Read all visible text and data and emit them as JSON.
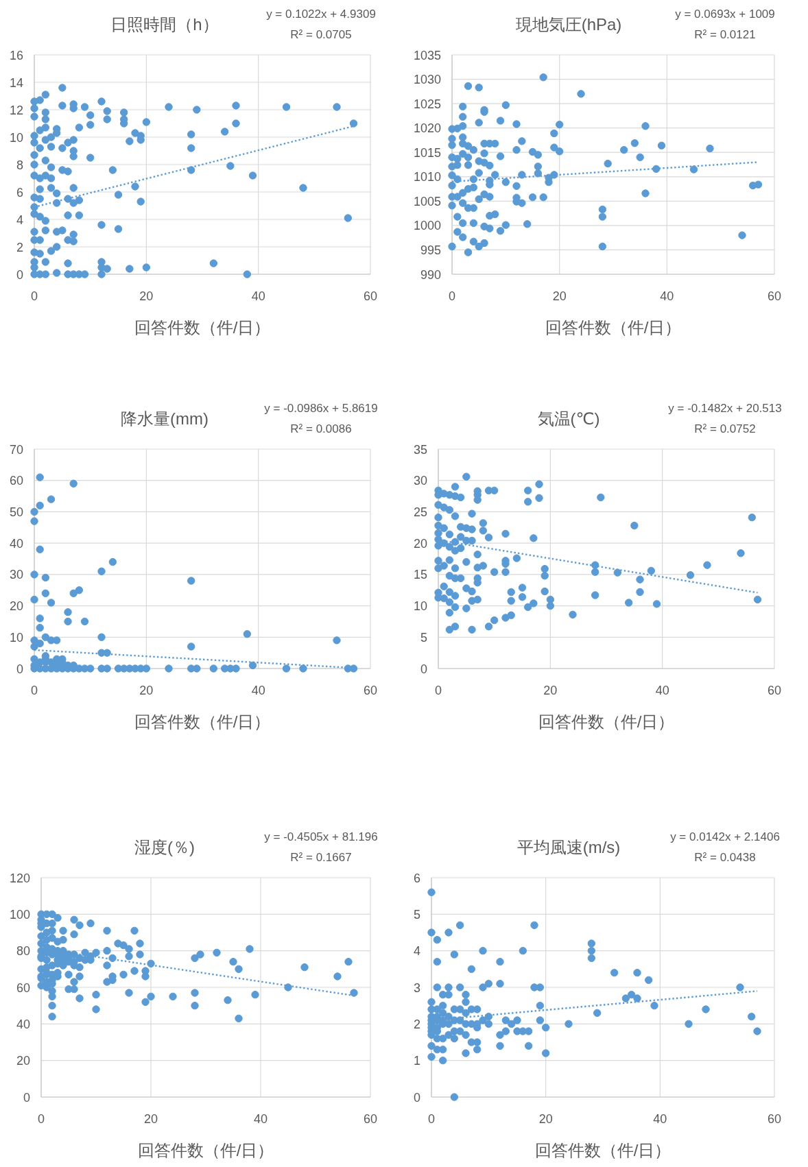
{
  "chart_data": [
    {
      "type": "scatter",
      "title": "日照時間（h）",
      "xlabel": "回答件数（件/日）",
      "annotations": [
        "y = 0.1022x + 4.9309",
        "R² = 0.0705"
      ],
      "xlim": [
        0,
        60
      ],
      "xticks": [
        0,
        20,
        40,
        60
      ],
      "ylim": [
        0,
        16
      ],
      "yticks": [
        0,
        2,
        4,
        6,
        8,
        10,
        12,
        14,
        16
      ],
      "grid": true,
      "series": [
        {
          "marker": "circle",
          "color": "#5b9bd5",
          "x": [
            5,
            2,
            0,
            1,
            0,
            0,
            2,
            2,
            2,
            5,
            7,
            7,
            9,
            10,
            10,
            12,
            13,
            13,
            16,
            16,
            16,
            20,
            24,
            29,
            36,
            36,
            45,
            54,
            57,
            34,
            28,
            28,
            18,
            19,
            19,
            17,
            8,
            4,
            4,
            0,
            0,
            1,
            1,
            2,
            3,
            3,
            5,
            6,
            7,
            7,
            7,
            10,
            0,
            0,
            2,
            3,
            0,
            1,
            2,
            3,
            5,
            6,
            14,
            28,
            35,
            39,
            18,
            7,
            48,
            1,
            3,
            4,
            0,
            1,
            4,
            6,
            8,
            7,
            15,
            19,
            0,
            0,
            1,
            6,
            8,
            56,
            2,
            12,
            15,
            0,
            2,
            4,
            5,
            7,
            0,
            1,
            6,
            7,
            0,
            1,
            3,
            4,
            2,
            0,
            6,
            12,
            32,
            12,
            13,
            17,
            20,
            0,
            1,
            2,
            4,
            6,
            7,
            8,
            9,
            12,
            38,
            0
          ],
          "values": [
            13.6,
            13.1,
            12.6,
            12.7,
            12.1,
            11.5,
            11.8,
            11.3,
            10.7,
            12.3,
            12.4,
            12.1,
            12.2,
            11.6,
            10.9,
            12.6,
            11.9,
            11.3,
            11.8,
            11.3,
            11.0,
            11.1,
            12.2,
            12.0,
            12.3,
            11.0,
            12.2,
            12.2,
            11.0,
            10.4,
            10.2,
            9.2,
            10.3,
            10.1,
            9.8,
            9.7,
            10.7,
            10.6,
            10.3,
            10.1,
            9.6,
            10.5,
            9.2,
            9.8,
            10.0,
            9.3,
            9.2,
            9.6,
            9.8,
            9.0,
            8.6,
            8.5,
            8.7,
            8.0,
            8.3,
            7.8,
            7.2,
            7.0,
            7.2,
            7.0,
            7.6,
            7.5,
            7.6,
            7.6,
            7.9,
            7.2,
            6.4,
            6.3,
            6.3,
            6.2,
            6.3,
            5.9,
            5.6,
            5.5,
            5.2,
            5.5,
            5.4,
            5.2,
            5.8,
            5.3,
            4.9,
            4.4,
            4.2,
            4.3,
            4.3,
            4.1,
            3.9,
            3.6,
            3.3,
            3.1,
            3.2,
            3.1,
            3.2,
            2.9,
            2.5,
            2.5,
            2.5,
            2.4,
            1.6,
            1.5,
            1.7,
            2.0,
            0.9,
            0.9,
            0.8,
            0.9,
            0.8,
            0.5,
            0.4,
            0.4,
            0.5,
            0,
            0,
            0,
            0.1,
            0,
            0,
            0,
            0,
            0,
            0,
            0.5
          ]
        },
        {
          "type": "line",
          "marker": "none",
          "color": "#5b9bd5",
          "line_style": "dotted",
          "x": [
            0,
            57
          ],
          "values": [
            4.9,
            10.8
          ]
        }
      ]
    },
    {
      "type": "scatter",
      "title": "現地気圧(hPa)",
      "xlabel": "回答件数（件/日）",
      "annotations": [
        "y = 0.0693x + 1009",
        "R² = 0.0121"
      ],
      "xlim": [
        0,
        60
      ],
      "xticks": [
        0,
        20,
        40,
        60
      ],
      "ylim": [
        990,
        1035
      ],
      "yticks": [
        990,
        995,
        1000,
        1005,
        1010,
        1015,
        1020,
        1025,
        1030,
        1035
      ],
      "grid": true,
      "series": [
        {
          "marker": "circle",
          "color": "#5b9bd5",
          "x": [
            17,
            3,
            5,
            24,
            2,
            10,
            6,
            6,
            2,
            9,
            5,
            12,
            20,
            36,
            0,
            1,
            2,
            19,
            0,
            0,
            2,
            2,
            13,
            6,
            7,
            8,
            3,
            4,
            34,
            39,
            48,
            32,
            12,
            19,
            20,
            15,
            16,
            6,
            9,
            35,
            0,
            1,
            3,
            2,
            5,
            6,
            7,
            3,
            29,
            16,
            0,
            16,
            38,
            45,
            13,
            8,
            5,
            19,
            18,
            18,
            0,
            1,
            4,
            7,
            10,
            7,
            12,
            0,
            3,
            4,
            56,
            57,
            36,
            0,
            1,
            6,
            7,
            15,
            17,
            5,
            12,
            12,
            13,
            0,
            2,
            3,
            4,
            28,
            28,
            8,
            7,
            1,
            2,
            4,
            14,
            10,
            6,
            7,
            9,
            1,
            2,
            54,
            4,
            6,
            0,
            5,
            28,
            3,
            1,
            2
          ],
          "values": [
            1030.4,
            1028.6,
            1028.3,
            1027.0,
            1024.4,
            1024.7,
            1023.7,
            1023.3,
            1022.3,
            1021.5,
            1021.1,
            1020.8,
            1020.7,
            1020.4,
            1019.8,
            1019.9,
            1020.4,
            1018.9,
            1017.8,
            1016.5,
            1018.1,
            1016.8,
            1017.3,
            1016.8,
            1016.8,
            1016.8,
            1016.3,
            1015.5,
            1016.9,
            1016.4,
            1015.8,
            1015.5,
            1015.5,
            1016.0,
            1015.2,
            1015.1,
            1014.5,
            1014.8,
            1014.2,
            1014.0,
            1014.0,
            1013.7,
            1014.0,
            1014.7,
            1013.2,
            1012.9,
            1012.3,
            1012.4,
            1012.7,
            1012.1,
            1012.1,
            1010.7,
            1011.6,
            1011.5,
            1010.4,
            1010.4,
            1010.8,
            1010.4,
            1009.8,
            1008.9,
            1010.3,
            1009.5,
            1009.5,
            1009.2,
            1008.9,
            1008.4,
            1008.1,
            1008.2,
            1007.5,
            1007.8,
            1008.2,
            1008.4,
            1006.6,
            1005.9,
            1005.9,
            1006.4,
            1005.9,
            1005.8,
            1005.8,
            1005.4,
            1005.7,
            1004.9,
            1004.6,
            1004.1,
            1004.6,
            1003.6,
            1003.6,
            1003.3,
            1001.8,
            1002.3,
            1002.0,
            1001.8,
            1000.5,
            1000.5,
            1000.3,
            1000.1,
            999.8,
            999.4,
            998.9,
            998.7,
            997.6,
            998.0,
            996.7,
            996.4,
            995.7,
            995.7,
            995.7,
            994.5,
            1012.4,
            1006.7
          ]
        },
        {
          "type": "line",
          "marker": "none",
          "color": "#5b9bd5",
          "line_style": "dotted",
          "x": [
            0,
            57
          ],
          "values": [
            1009.0,
            1013.0
          ]
        }
      ]
    },
    {
      "type": "scatter",
      "title": "降水量(mm)",
      "xlabel": "回答件数（件/日）",
      "annotations": [
        "y = -0.0986x + 5.8619",
        "R² = 0.0086"
      ],
      "xlim": [
        0,
        60
      ],
      "xticks": [
        0,
        20,
        40,
        60
      ],
      "ylim": [
        0,
        70
      ],
      "yticks": [
        0,
        10,
        20,
        30,
        40,
        50,
        60,
        70
      ],
      "grid": true,
      "series": [
        {
          "marker": "circle",
          "color": "#5b9bd5",
          "x": [
            1,
            7,
            3,
            1,
            0,
            0,
            1,
            14,
            12,
            0,
            2,
            28,
            8,
            7,
            2,
            0,
            3,
            6,
            6,
            9,
            1,
            1,
            38,
            12,
            2,
            3,
            4,
            54,
            0,
            0,
            1,
            28,
            12,
            13,
            2,
            0,
            5,
            4,
            2,
            39,
            5,
            1,
            0,
            3,
            4,
            6,
            7,
            2,
            0,
            1,
            2,
            3,
            4,
            5,
            6,
            7,
            8,
            9,
            10,
            12,
            13,
            15,
            16,
            17,
            18,
            19,
            20,
            24,
            28,
            29,
            32,
            34,
            35,
            36,
            45,
            48,
            56,
            57
          ],
          "values": [
            61,
            59,
            54,
            52,
            50,
            47,
            38,
            34,
            31,
            30,
            29,
            28,
            25,
            24,
            24,
            22,
            21,
            18,
            15,
            15,
            16,
            13,
            11,
            10,
            10,
            9,
            9,
            9,
            9,
            7,
            8,
            7,
            5,
            5,
            4,
            3,
            3,
            3,
            2,
            1,
            2,
            2,
            1,
            2,
            1,
            1,
            1,
            3,
            0,
            0,
            0,
            0,
            0,
            0,
            0,
            0,
            0,
            0,
            0,
            0,
            0,
            0,
            0,
            0,
            0,
            0,
            0,
            0,
            0,
            0,
            0,
            0,
            0,
            0,
            0,
            0,
            0,
            0
          ]
        },
        {
          "type": "line",
          "marker": "none",
          "color": "#5b9bd5",
          "line_style": "dotted",
          "x": [
            0,
            57
          ],
          "values": [
            5.9,
            0.2
          ]
        }
      ]
    },
    {
      "type": "scatter",
      "title": "気温(℃)",
      "xlabel": "回答件数（件/日）",
      "annotations": [
        "y = -0.1482x + 20.513",
        "R² = 0.0752"
      ],
      "xlim": [
        0,
        60
      ],
      "xticks": [
        0,
        20,
        40,
        60
      ],
      "ylim": [
        0,
        35
      ],
      "yticks": [
        0,
        5,
        10,
        15,
        20,
        25,
        30,
        35
      ],
      "grid": true,
      "series": [
        {
          "marker": "circle",
          "color": "#5b9bd5",
          "x": [
            5,
            18,
            3,
            9,
            10,
            16,
            7,
            0,
            0,
            1,
            2,
            3,
            4,
            7,
            7,
            18,
            29,
            16,
            0,
            1,
            2,
            6,
            3,
            0,
            56,
            35,
            8,
            0,
            1,
            4,
            5,
            6,
            8,
            12,
            0,
            2,
            4,
            0,
            9,
            17,
            1,
            3,
            5,
            6,
            0,
            2,
            4,
            3,
            7,
            54,
            14,
            2,
            12,
            0,
            12,
            5,
            1,
            8,
            7,
            28,
            48,
            0,
            3,
            19,
            10,
            12,
            28,
            32,
            38,
            19,
            45,
            2,
            3,
            4,
            7,
            7,
            36,
            1,
            5,
            15,
            6,
            13,
            19,
            36,
            0,
            28,
            2,
            3,
            0,
            1,
            15,
            2,
            6,
            7,
            13,
            20,
            57,
            17,
            34,
            39,
            16,
            20,
            3,
            5,
            2,
            24,
            12,
            13,
            10,
            9,
            3,
            2,
            6
          ],
          "values": [
            30.6,
            29.4,
            29.0,
            28.4,
            28.4,
            28.4,
            28.3,
            28.4,
            27.7,
            27.9,
            27.7,
            27.5,
            27.3,
            27.7,
            26.9,
            27.2,
            27.3,
            26.6,
            26.1,
            25.7,
            25.3,
            24.7,
            24.3,
            24.1,
            24.1,
            22.8,
            23.2,
            22.8,
            22.4,
            22.6,
            22.4,
            22.2,
            22.0,
            21.5,
            21.6,
            21.4,
            21.0,
            20.6,
            20.9,
            20.8,
            20.0,
            20.2,
            20.4,
            20.4,
            19.6,
            19.4,
            19.2,
            18.8,
            18.2,
            18.4,
            17.6,
            17.3,
            17.2,
            17.2,
            16.7,
            17.0,
            16.4,
            16.4,
            16.1,
            16.5,
            16.5,
            16.0,
            16.0,
            15.9,
            15.4,
            15.4,
            15.4,
            15.3,
            15.6,
            14.8,
            14.9,
            14.8,
            14.4,
            14.4,
            14.4,
            13.7,
            14.2,
            13.1,
            12.8,
            12.9,
            12.3,
            12.2,
            12.3,
            12.2,
            12.1,
            11.7,
            12.2,
            11.6,
            11.3,
            11.2,
            11.4,
            10.6,
            10.8,
            11.0,
            10.8,
            11.0,
            11.0,
            10.4,
            10.5,
            10.3,
            9.8,
            10.0,
            9.8,
            9.6,
            8.9,
            8.6,
            8.1,
            8.5,
            7.7,
            6.7,
            6.7,
            6.2,
            6.2
          ]
        },
        {
          "type": "line",
          "marker": "none",
          "color": "#5b9bd5",
          "line_style": "dotted",
          "x": [
            0,
            57
          ],
          "values": [
            20.5,
            12.1
          ]
        }
      ]
    },
    {
      "type": "scatter",
      "title": "湿度(％)",
      "xlabel": "回答件数（件/日）",
      "annotations": [
        "y = -0.4505x + 81.196",
        "R² = 0.1667"
      ],
      "xlim": [
        0,
        60
      ],
      "xticks": [
        0,
        20,
        40,
        60
      ],
      "ylim": [
        0,
        120
      ],
      "yticks": [
        0,
        20,
        40,
        60,
        80,
        100,
        120
      ],
      "grid": true,
      "series": [
        {
          "marker": "circle",
          "color": "#5b9bd5",
          "x": [
            1,
            0,
            2,
            3,
            0,
            6,
            9,
            7,
            4,
            12,
            17,
            6,
            0,
            2,
            0,
            1,
            4,
            14,
            18,
            15,
            0,
            2,
            38,
            32,
            16,
            12,
            0,
            1,
            3,
            10,
            18,
            16,
            29,
            28,
            9,
            13,
            0,
            4,
            6,
            8,
            56,
            35,
            20,
            3,
            7,
            12,
            48,
            36,
            0,
            1,
            2,
            17,
            19,
            15,
            5,
            3,
            7,
            19,
            54,
            13,
            0,
            13,
            12,
            1,
            6,
            0,
            2,
            45,
            5,
            6,
            2,
            16,
            28,
            57,
            10,
            39,
            24,
            20,
            2,
            7,
            19,
            34,
            2,
            28,
            10,
            2,
            36,
            0,
            1,
            2,
            1,
            2,
            3,
            1,
            2,
            3,
            4,
            5,
            5,
            6,
            7,
            8,
            9,
            4,
            3,
            1,
            2,
            5,
            6,
            0,
            1,
            4,
            0,
            1,
            2,
            3,
            1
          ],
          "values": [
            100,
            100,
            100,
            98,
            97,
            97,
            95,
            94,
            91,
            91,
            91,
            89,
            93,
            91,
            88,
            86,
            86,
            84,
            84,
            83,
            84,
            81,
            81,
            79,
            81,
            80,
            80,
            79,
            78,
            79,
            78,
            77,
            78,
            76,
            75,
            76,
            76,
            75,
            74,
            75,
            74,
            74,
            73,
            73,
            71,
            72,
            71,
            70,
            70,
            68,
            67,
            69,
            69,
            67,
            67,
            66,
            66,
            66,
            66,
            66,
            65,
            64,
            63,
            63,
            63,
            61,
            62,
            60,
            59,
            59,
            58,
            57,
            57,
            57,
            56,
            56,
            55,
            55,
            55,
            54,
            52,
            53,
            50,
            50,
            48,
            44,
            43,
            95,
            95,
            95,
            90,
            87,
            85,
            82,
            78,
            80,
            80,
            78,
            76,
            78,
            76,
            79,
            77,
            77,
            75,
            75,
            72,
            74,
            72,
            77,
            71,
            72,
            66,
            67,
            64,
            68,
            60
          ]
        },
        {
          "type": "line",
          "marker": "none",
          "color": "#5b9bd5",
          "line_style": "dotted",
          "x": [
            0,
            57
          ],
          "values": [
            81.2,
            55.5
          ]
        }
      ]
    },
    {
      "type": "scatter",
      "title": "平均風速(m/s)",
      "xlabel": "回答件数（件/日）",
      "annotations": [
        "y = 0.0142x + 2.1406",
        "R² = 0.0438"
      ],
      "xlim": [
        0,
        60
      ],
      "xticks": [
        0,
        20,
        40,
        60
      ],
      "ylim": [
        0,
        6
      ],
      "yticks": [
        0,
        1,
        2,
        3,
        4,
        5,
        6
      ],
      "grid": true,
      "series": [
        {
          "marker": "circle",
          "color": "#5b9bd5",
          "x": [
            0,
            5,
            18,
            0,
            3,
            1,
            28,
            28,
            28,
            9,
            16,
            4,
            1,
            12,
            7,
            32,
            36,
            38,
            1,
            3,
            5,
            9,
            10,
            12,
            18,
            19,
            54,
            6,
            2,
            3,
            34,
            35,
            36,
            0,
            6,
            19,
            39,
            48,
            0,
            4,
            7,
            8,
            29,
            56,
            10,
            2,
            0,
            5,
            9,
            13,
            15,
            19,
            24,
            45,
            10,
            14,
            3,
            20,
            8,
            1,
            57,
            15,
            16,
            17,
            13,
            0,
            12,
            6,
            4,
            2,
            7,
            8,
            0,
            12,
            17,
            1,
            2,
            8,
            6,
            20,
            0,
            2,
            4,
            0,
            1,
            1,
            2,
            0,
            1,
            0,
            1,
            2,
            3,
            3,
            4,
            5,
            5,
            6,
            7,
            1,
            2,
            0,
            4,
            6,
            8
          ],
          "values": [
            5.6,
            4.7,
            4.7,
            4.5,
            4.5,
            4.3,
            4.2,
            4.0,
            3.8,
            4.0,
            4.0,
            3.9,
            3.7,
            3.7,
            3.5,
            3.4,
            3.4,
            3.2,
            3.0,
            3.0,
            3.0,
            3.0,
            3.1,
            3.1,
            3.0,
            3.0,
            3.0,
            2.8,
            2.8,
            2.8,
            2.7,
            2.8,
            2.7,
            2.6,
            2.6,
            2.5,
            2.5,
            2.4,
            2.4,
            2.4,
            2.4,
            2.4,
            2.3,
            2.2,
            2.2,
            2.3,
            2.1,
            2.1,
            2.1,
            2.1,
            2.1,
            2.1,
            2.0,
            2.0,
            2.0,
            2.0,
            2.0,
            1.9,
            1.9,
            1.9,
            1.8,
            1.8,
            1.8,
            1.8,
            1.8,
            1.7,
            1.7,
            1.7,
            1.6,
            1.6,
            1.5,
            1.5,
            1.4,
            1.4,
            1.4,
            1.3,
            1.3,
            1.3,
            1.2,
            1.2,
            1.1,
            1.0,
            0,
            2.2,
            2.4,
            2.1,
            2.0,
            1.9,
            1.6,
            2.0,
            2.2,
            2.5,
            2.2,
            1.7,
            2.1,
            2.4,
            1.8,
            2.0,
            2.0,
            1.8,
            2.1,
            1.8,
            1.8,
            2.3,
            2.0
          ]
        },
        {
          "type": "line",
          "marker": "none",
          "color": "#5b9bd5",
          "line_style": "dotted",
          "x": [
            0,
            57
          ],
          "values": [
            2.1,
            2.9
          ]
        }
      ]
    }
  ]
}
